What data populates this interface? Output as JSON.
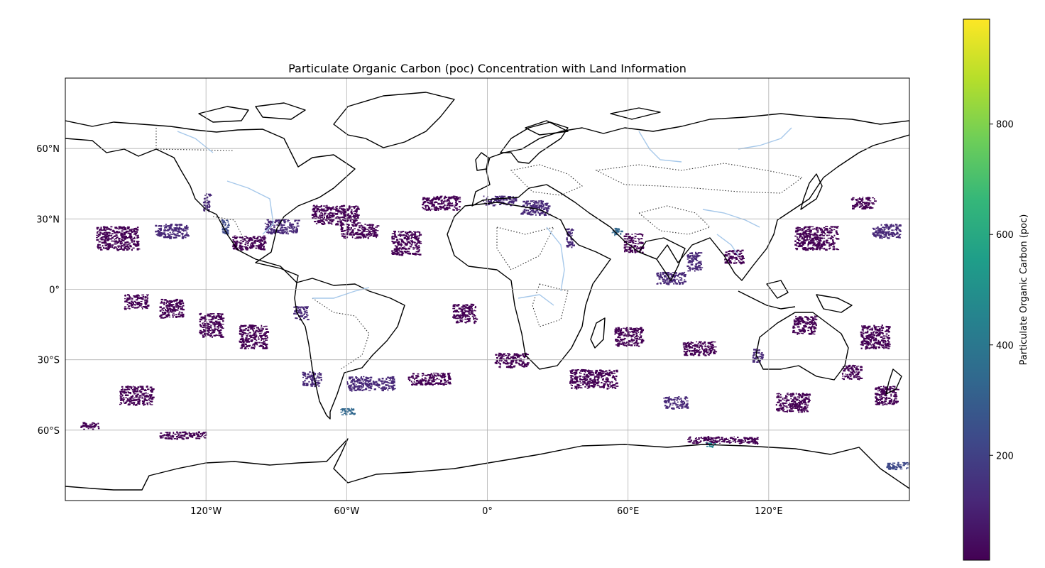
{
  "chart_data": {
    "type": "heatmap",
    "title": "Particulate Organic Carbon (poc) Concentration with Land Information",
    "projection": "PlateCarree",
    "xlim": [
      -180,
      180
    ],
    "ylim": [
      -90,
      90
    ],
    "grid": true,
    "x_ticks": [
      {
        "value": -120,
        "label": "120°W"
      },
      {
        "value": -60,
        "label": "60°W"
      },
      {
        "value": 0,
        "label": "0°"
      },
      {
        "value": 60,
        "label": "60°E"
      },
      {
        "value": 120,
        "label": "120°E"
      }
    ],
    "y_ticks": [
      {
        "value": 60,
        "label": "60°N"
      },
      {
        "value": 30,
        "label": "30°N"
      },
      {
        "value": 0,
        "label": "0°"
      },
      {
        "value": -30,
        "label": "30°S"
      },
      {
        "value": -60,
        "label": "60°S"
      }
    ],
    "colorbar": {
      "label": "Particulate Organic Carbon (poc)",
      "colormap": "viridis",
      "vmin": 10,
      "vmax": 990,
      "ticks": [
        {
          "value": 200,
          "label": "200"
        },
        {
          "value": 400,
          "label": "400"
        },
        {
          "value": 600,
          "label": "600"
        },
        {
          "value": 800,
          "label": "800"
        }
      ]
    },
    "colors": {
      "viridis": [
        "#440154",
        "#482878",
        "#3e4989",
        "#31688e",
        "#26828e",
        "#1f9e89",
        "#35b779",
        "#6ece58",
        "#b5de2b",
        "#fde725"
      ],
      "coastline": "#000000",
      "river": "#a6c8ea",
      "grid": "#b0b0b0"
    },
    "data_patches": [
      {
        "lon": -158,
        "lat": 22,
        "w": 18,
        "h": 10,
        "v": 60
      },
      {
        "lon": -135,
        "lat": 25,
        "w": 14,
        "h": 6,
        "v": 70
      },
      {
        "lon": -120,
        "lat": 37,
        "w": 3,
        "h": 8,
        "v": 150
      },
      {
        "lon": -112,
        "lat": 27,
        "w": 3,
        "h": 6,
        "v": 260
      },
      {
        "lon": -102,
        "lat": 20,
        "w": 14,
        "h": 6,
        "v": 60
      },
      {
        "lon": -88,
        "lat": 27,
        "w": 14,
        "h": 6,
        "v": 70
      },
      {
        "lon": -65,
        "lat": 32,
        "w": 20,
        "h": 8,
        "v": 60
      },
      {
        "lon": -55,
        "lat": 25,
        "w": 16,
        "h": 6,
        "v": 50
      },
      {
        "lon": -35,
        "lat": 20,
        "w": 12,
        "h": 10,
        "v": 50
      },
      {
        "lon": -20,
        "lat": 37,
        "w": 16,
        "h": 6,
        "v": 40
      },
      {
        "lon": 5,
        "lat": 38,
        "w": 14,
        "h": 4,
        "v": 140
      },
      {
        "lon": 20,
        "lat": 35,
        "w": 12,
        "h": 6,
        "v": 120
      },
      {
        "lon": 35,
        "lat": 22,
        "w": 3,
        "h": 8,
        "v": 150
      },
      {
        "lon": 55,
        "lat": 25,
        "w": 4,
        "h": 3,
        "v": 350
      },
      {
        "lon": 62,
        "lat": 20,
        "w": 8,
        "h": 8,
        "v": 60
      },
      {
        "lon": 78,
        "lat": 5,
        "w": 12,
        "h": 5,
        "v": 80
      },
      {
        "lon": 88,
        "lat": 12,
        "w": 6,
        "h": 8,
        "v": 70
      },
      {
        "lon": 105,
        "lat": 14,
        "w": 8,
        "h": 6,
        "v": 50
      },
      {
        "lon": 140,
        "lat": 22,
        "w": 18,
        "h": 10,
        "v": 60
      },
      {
        "lon": 170,
        "lat": 25,
        "w": 12,
        "h": 6,
        "v": 70
      },
      {
        "lon": 160,
        "lat": 37,
        "w": 10,
        "h": 5,
        "v": 50
      },
      {
        "lon": -150,
        "lat": -5,
        "w": 10,
        "h": 6,
        "v": 60
      },
      {
        "lon": -135,
        "lat": -8,
        "w": 10,
        "h": 8,
        "v": 60
      },
      {
        "lon": -118,
        "lat": -15,
        "w": 10,
        "h": 10,
        "v": 50
      },
      {
        "lon": -100,
        "lat": -20,
        "w": 12,
        "h": 10,
        "v": 55
      },
      {
        "lon": -80,
        "lat": -10,
        "w": 6,
        "h": 6,
        "v": 70
      },
      {
        "lon": -10,
        "lat": -10,
        "w": 10,
        "h": 8,
        "v": 50
      },
      {
        "lon": 10,
        "lat": -30,
        "w": 14,
        "h": 6,
        "v": 60
      },
      {
        "lon": 60,
        "lat": -20,
        "w": 12,
        "h": 8,
        "v": 60
      },
      {
        "lon": 90,
        "lat": -25,
        "w": 14,
        "h": 6,
        "v": 55
      },
      {
        "lon": 135,
        "lat": -15,
        "w": 10,
        "h": 8,
        "v": 50
      },
      {
        "lon": 165,
        "lat": -20,
        "w": 12,
        "h": 10,
        "v": 60
      },
      {
        "lon": -150,
        "lat": -45,
        "w": 14,
        "h": 8,
        "v": 60
      },
      {
        "lon": -75,
        "lat": -38,
        "w": 8,
        "h": 6,
        "v": 80
      },
      {
        "lon": -50,
        "lat": -40,
        "w": 20,
        "h": 6,
        "v": 80
      },
      {
        "lon": -25,
        "lat": -38,
        "w": 18,
        "h": 5,
        "v": 60
      },
      {
        "lon": -60,
        "lat": -52,
        "w": 6,
        "h": 3,
        "v": 300
      },
      {
        "lon": 45,
        "lat": -38,
        "w": 20,
        "h": 8,
        "v": 60
      },
      {
        "lon": 80,
        "lat": -48,
        "w": 10,
        "h": 5,
        "v": 70
      },
      {
        "lon": 130,
        "lat": -48,
        "w": 14,
        "h": 8,
        "v": 60
      },
      {
        "lon": 115,
        "lat": -28,
        "w": 4,
        "h": 6,
        "v": 150
      },
      {
        "lon": 155,
        "lat": -35,
        "w": 8,
        "h": 6,
        "v": 60
      },
      {
        "lon": 170,
        "lat": -45,
        "w": 10,
        "h": 8,
        "v": 60
      },
      {
        "lon": -170,
        "lat": -58,
        "w": 8,
        "h": 3,
        "v": 50
      },
      {
        "lon": -130,
        "lat": -62,
        "w": 20,
        "h": 3,
        "v": 50
      },
      {
        "lon": 100,
        "lat": -64,
        "w": 30,
        "h": 3,
        "v": 50
      },
      {
        "lon": 175,
        "lat": -75,
        "w": 10,
        "h": 3,
        "v": 200
      },
      {
        "lon": 95,
        "lat": -66,
        "w": 4,
        "h": 2,
        "v": 400
      }
    ]
  }
}
